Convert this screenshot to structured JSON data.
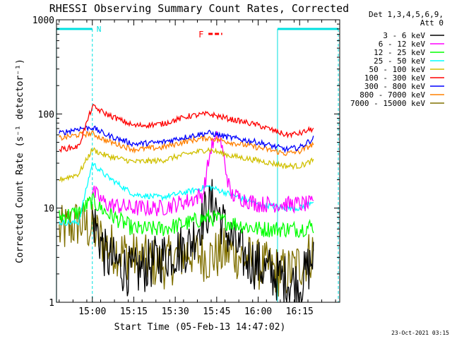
{
  "chart_data": {
    "type": "line",
    "title": "RHESSI Observing Summary Count Rates, Corrected",
    "xlabel": "Start Time (05-Feb-13 14:47:02)",
    "ylabel": "Corrected Count Rate (s⁻¹ detector⁻¹)",
    "y_scale": "log",
    "ylim": [
      1,
      1000
    ],
    "xlim": [
      "14:47:02",
      "16:29:30"
    ],
    "x_ticks": [
      "15:00",
      "15:15",
      "15:30",
      "15:45",
      "16:00",
      "16:15"
    ],
    "y_ticks": [
      "1",
      "10",
      "100",
      "1000"
    ],
    "legend_header": [
      "Det 1,3,4,5,6,9,",
      "Att 0"
    ],
    "legend_position": "right",
    "annotations": [
      {
        "text": "N",
        "color": "#00e0e0",
        "from": "14:47",
        "to": "15:00",
        "kind": "night"
      },
      {
        "text": "",
        "color": "#00e0e0",
        "from": "16:07",
        "to": "16:29",
        "kind": "night"
      },
      {
        "text": "F",
        "color": "#ff0000",
        "from": "15:42",
        "to": "15:47",
        "kind": "flare"
      }
    ],
    "series": [
      {
        "name": "3 - 6 keV",
        "color": "#000000",
        "x": [
          "15:00",
          "15:05",
          "15:15",
          "15:25",
          "15:35",
          "15:40",
          "15:44",
          "15:48",
          "15:55",
          "16:05",
          "16:15",
          "16:20"
        ],
        "values": [
          8,
          3,
          2,
          3,
          4,
          8,
          12,
          6,
          3,
          2,
          1.5,
          3
        ]
      },
      {
        "name": "6 - 12 keV",
        "color": "#ff00ff",
        "x": [
          "15:00",
          "15:05",
          "15:15",
          "15:25",
          "15:35",
          "15:40",
          "15:43",
          "15:46",
          "15:50",
          "16:00",
          "16:15",
          "16:20"
        ],
        "values": [
          15,
          11,
          10,
          10,
          12,
          14,
          45,
          60,
          14,
          11,
          11,
          11
        ]
      },
      {
        "name": "12 - 25 keV",
        "color": "#00ff00",
        "x": [
          "14:48",
          "14:55",
          "15:00",
          "15:05",
          "15:15",
          "15:25",
          "15:35",
          "15:42",
          "15:50",
          "16:00",
          "16:10",
          "16:15",
          "16:20"
        ],
        "values": [
          8,
          9,
          12,
          9,
          6,
          6,
          7,
          8,
          7,
          6,
          6,
          6,
          6.5
        ]
      },
      {
        "name": "25 - 50 keV",
        "color": "#00ffff",
        "x": [
          "14:48",
          "14:55",
          "15:00",
          "15:05",
          "15:15",
          "15:25",
          "15:35",
          "15:42",
          "15:50",
          "16:00",
          "16:10",
          "16:15",
          "16:20"
        ],
        "values": [
          7,
          7,
          30,
          22,
          14,
          13,
          15,
          17,
          14,
          11,
          10,
          10,
          12
        ]
      },
      {
        "name": "50 - 100 keV",
        "color": "#d0c000",
        "x": [
          "14:48",
          "14:55",
          "15:00",
          "15:05",
          "15:15",
          "15:25",
          "15:35",
          "15:42",
          "15:50",
          "16:00",
          "16:10",
          "16:15",
          "16:20"
        ],
        "values": [
          20,
          23,
          42,
          36,
          31,
          32,
          38,
          42,
          36,
          32,
          28,
          28,
          32
        ]
      },
      {
        "name": "100 - 300 keV",
        "color": "#ff0000",
        "x": [
          "14:48",
          "14:55",
          "15:00",
          "15:05",
          "15:15",
          "15:25",
          "15:35",
          "15:42",
          "15:50",
          "16:00",
          "16:10",
          "16:15",
          "16:20"
        ],
        "values": [
          42,
          45,
          120,
          100,
          75,
          78,
          95,
          100,
          88,
          76,
          60,
          62,
          70
        ]
      },
      {
        "name": "300 - 800 keV",
        "color": "#0000ff",
        "x": [
          "14:48",
          "14:55",
          "15:00",
          "15:05",
          "15:15",
          "15:25",
          "15:35",
          "15:42",
          "15:50",
          "16:00",
          "16:10",
          "16:15",
          "16:20"
        ],
        "values": [
          62,
          70,
          72,
          60,
          48,
          50,
          58,
          63,
          56,
          50,
          42,
          44,
          55
        ]
      },
      {
        "name": "800 - 7000 keV",
        "color": "#ff8000",
        "x": [
          "14:48",
          "14:55",
          "15:00",
          "15:05",
          "15:15",
          "15:25",
          "15:35",
          "15:42",
          "15:50",
          "16:00",
          "16:10",
          "16:15",
          "16:20"
        ],
        "values": [
          55,
          60,
          62,
          52,
          42,
          44,
          52,
          56,
          50,
          44,
          38,
          40,
          48
        ]
      },
      {
        "name": "7000 - 15000 keV",
        "color": "#807000",
        "x": [
          "14:48",
          "14:55",
          "15:00",
          "15:05",
          "15:15",
          "15:25",
          "15:35",
          "15:42",
          "15:50",
          "16:00",
          "16:10",
          "16:15",
          "16:20"
        ],
        "values": [
          5.5,
          7,
          6,
          4,
          3,
          2.5,
          3.5,
          3,
          3.5,
          2.5,
          2,
          2.5,
          3.5
        ]
      }
    ]
  },
  "footer": {
    "date_stamp": "23-Oct-2021 03:15"
  }
}
